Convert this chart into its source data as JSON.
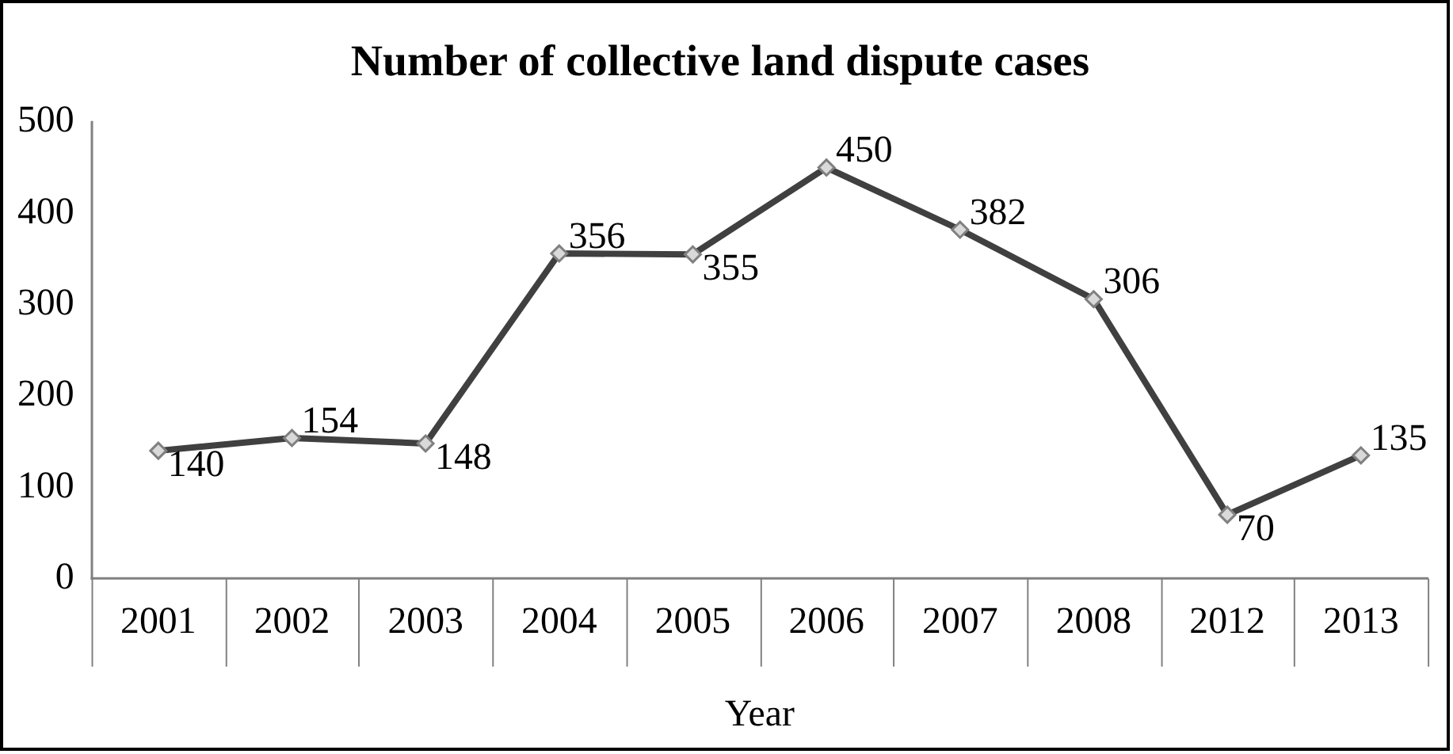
{
  "chart_data": {
    "type": "line",
    "title": "Number of collective land dispute cases",
    "xlabel": "Year",
    "categories": [
      "2001",
      "2002",
      "2003",
      "2004",
      "2005",
      "2006",
      "2007",
      "2008",
      "2012",
      "2013"
    ],
    "series": [
      {
        "color": "#404040",
        "values": [
          140,
          154,
          148,
          356,
          355,
          450,
          382,
          306,
          70,
          135
        ]
      }
    ],
    "ylim": [
      0,
      500
    ],
    "yticks": [
      0,
      100,
      200,
      300,
      400,
      500
    ],
    "grid": false,
    "legend": false,
    "marker": "diamond",
    "line_style": "solid",
    "data_labels": true
  }
}
